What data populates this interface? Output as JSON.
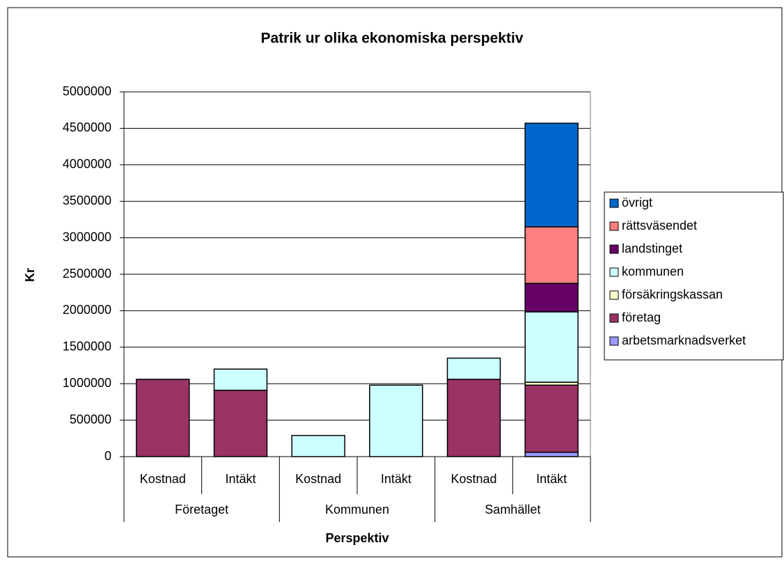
{
  "chart_data": {
    "type": "stacked_bar",
    "title": "Patrik ur olika ekonomiska perspektiv",
    "ylabel": "Kr",
    "xlabel": "Perspektiv",
    "categories": [
      "Kostnad",
      "Intäkt",
      "Kostnad",
      "Intäkt",
      "Kostnad",
      "Intäkt"
    ],
    "groups": [
      "Företaget",
      "Kommunen",
      "Samhället"
    ],
    "series": [
      {
        "name": "arbetsmarknadsverket",
        "color": "#9999ff",
        "values": [
          0,
          0,
          0,
          0,
          0,
          60000
        ]
      },
      {
        "name": "företag",
        "color": "#993366",
        "values": [
          1060000,
          910000,
          0,
          0,
          1060000,
          920000
        ]
      },
      {
        "name": "försäkringskassan",
        "color": "#ffffcc",
        "values": [
          0,
          0,
          0,
          0,
          0,
          40000
        ]
      },
      {
        "name": "kommunen",
        "color": "#ccffff",
        "values": [
          0,
          290000,
          290000,
          980000,
          290000,
          965000
        ]
      },
      {
        "name": "landstinget",
        "color": "#660066",
        "values": [
          0,
          0,
          0,
          0,
          0,
          390000
        ]
      },
      {
        "name": "rättsväsendet",
        "color": "#ff8080",
        "values": [
          0,
          0,
          0,
          0,
          0,
          775000
        ]
      },
      {
        "name": "övrigt",
        "color": "#0066cc",
        "values": [
          0,
          0,
          0,
          0,
          0,
          1420000
        ]
      }
    ],
    "ylim": [
      0,
      5000000
    ],
    "yticks": [
      0,
      500000,
      1000000,
      1500000,
      2000000,
      2500000,
      3000000,
      3500000,
      4000000,
      4500000,
      5000000
    ],
    "grid": true,
    "legend": "right"
  }
}
